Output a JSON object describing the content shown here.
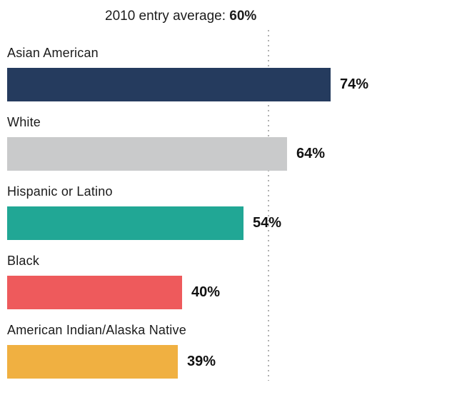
{
  "header": {
    "prefix": "2010 entry average: ",
    "value": "60%"
  },
  "chart_data": {
    "type": "bar",
    "orientation": "horizontal",
    "title": "2010 entry average: 60%",
    "categories": [
      "Asian American",
      "White",
      "Hispanic or Latino",
      "Black",
      "American Indian/Alaska Native"
    ],
    "values": [
      74,
      64,
      54,
      40,
      39
    ],
    "value_labels": [
      "74%",
      "64%",
      "54%",
      "40%",
      "39%"
    ],
    "bar_colors": [
      "#253b5e",
      "#c9cacb",
      "#21a795",
      "#ee5a5c",
      "#f0b041"
    ],
    "xlim": [
      0,
      100
    ],
    "grid": false,
    "legend": false,
    "reference_line": {
      "label": "2010 entry average",
      "value": 60,
      "display": "60%",
      "style": "dotted",
      "color": "#b0b0b0"
    },
    "text_color": "#1b1b1b"
  }
}
